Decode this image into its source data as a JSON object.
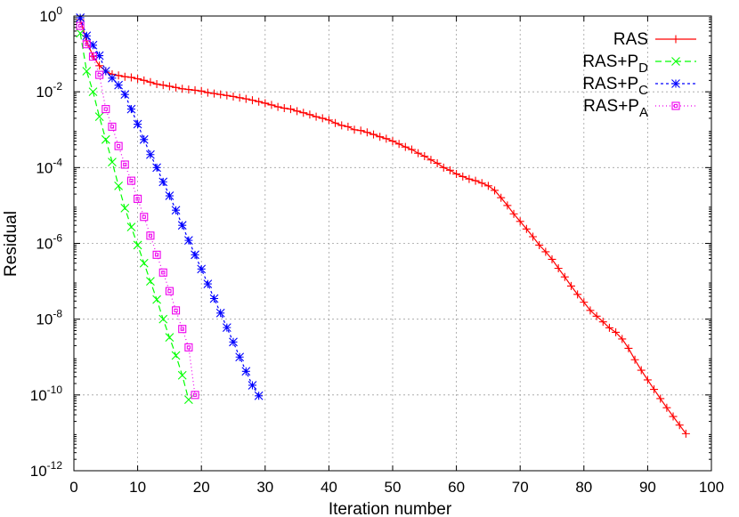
{
  "chart_data": {
    "type": "line",
    "xlabel": "Iteration number",
    "ylabel": "Residual",
    "xlim": [
      0,
      100
    ],
    "ylim": [
      1e-12,
      1
    ],
    "y_scale": "log",
    "grid": true,
    "legend_position": "top-right",
    "x_ticks": [
      "0",
      "10",
      "20",
      "30",
      "40",
      "50",
      "60",
      "70",
      "80",
      "90",
      "100"
    ],
    "y_ticks": [
      {
        "base": "10",
        "exp": "-12",
        "value": 1e-12
      },
      {
        "base": "10",
        "exp": "-10",
        "value": 1e-10
      },
      {
        "base": "10",
        "exp": "-8",
        "value": 1e-08
      },
      {
        "base": "10",
        "exp": "-6",
        "value": 1e-06
      },
      {
        "base": "10",
        "exp": "-4",
        "value": 0.0001
      },
      {
        "base": "10",
        "exp": "-2",
        "value": 0.01
      },
      {
        "base": "10",
        "exp": "0",
        "value": 1
      }
    ],
    "series": [
      {
        "name": "RAS",
        "legend_base": "RAS",
        "legend_sub": "",
        "color": "#ff0000",
        "dash": "",
        "marker": "plus",
        "x": [
          1,
          2,
          3,
          4,
          5,
          6,
          7,
          8,
          9,
          10,
          11,
          12,
          13,
          14,
          15,
          16,
          17,
          18,
          19,
          20,
          21,
          22,
          23,
          24,
          25,
          26,
          27,
          28,
          29,
          30,
          31,
          32,
          33,
          34,
          35,
          36,
          37,
          38,
          39,
          40,
          41,
          42,
          43,
          44,
          45,
          46,
          47,
          48,
          49,
          50,
          51,
          52,
          53,
          54,
          55,
          56,
          57,
          58,
          59,
          60,
          61,
          62,
          63,
          64,
          65,
          66,
          67,
          68,
          69,
          70,
          71,
          72,
          73,
          74,
          75,
          76,
          77,
          78,
          79,
          80,
          81,
          82,
          83,
          84,
          85,
          86,
          87,
          88,
          89,
          90,
          91,
          92,
          93,
          94,
          95,
          96
        ],
        "y": [
          0.8,
          0.22,
          0.087,
          0.049,
          0.035,
          0.029,
          0.027,
          0.025,
          0.024,
          0.022,
          0.02,
          0.018,
          0.016,
          0.015,
          0.014,
          0.013,
          0.012,
          0.0115,
          0.011,
          0.0105,
          0.0095,
          0.009,
          0.0085,
          0.008,
          0.0075,
          0.007,
          0.0065,
          0.006,
          0.0055,
          0.005,
          0.0045,
          0.004,
          0.0037,
          0.0035,
          0.0031,
          0.0028,
          0.0025,
          0.0022,
          0.002,
          0.0018,
          0.0015,
          0.0013,
          0.0012,
          0.001,
          0.00095,
          0.00085,
          0.00075,
          0.00065,
          0.00058,
          0.0005,
          0.00042,
          0.00035,
          0.0003,
          0.00024,
          0.0002,
          0.00016,
          0.00013,
          0.0001,
          8.5e-05,
          6.8e-05,
          5.8e-05,
          5e-05,
          4.5e-05,
          3.9e-05,
          3.3e-05,
          2.5e-05,
          1.6e-05,
          1e-05,
          6e-06,
          3.8e-06,
          2.4e-06,
          1.5e-06,
          9e-07,
          6e-07,
          3.8e-07,
          2.2e-07,
          1.3e-07,
          7.5e-08,
          4.5e-08,
          2.8e-08,
          1.7e-08,
          1.2e-08,
          8.5e-09,
          5.9e-09,
          4.5e-09,
          3e-09,
          1.7e-09,
          8.5e-10,
          4.5e-10,
          2.5e-10,
          1.4e-10,
          8e-11,
          4.6e-11,
          2.7e-11,
          1.6e-11,
          9.5e-12
        ]
      },
      {
        "name": "RAS+PD",
        "legend_base": "RAS+P",
        "legend_sub": "D",
        "color": "#00ff00",
        "dash": "7 4",
        "marker": "x",
        "x": [
          1,
          2,
          3,
          4,
          5,
          6,
          7,
          8,
          9,
          10,
          11,
          12,
          13,
          14,
          15,
          16,
          17,
          18
        ],
        "y": [
          0.35,
          0.035,
          0.01,
          0.0022,
          0.00055,
          0.00014,
          3.3e-05,
          8.5e-06,
          2.7e-06,
          9e-07,
          3e-07,
          1e-07,
          3.3e-08,
          1e-08,
          3.3e-09,
          1.1e-09,
          3.3e-10,
          7.5e-11
        ]
      },
      {
        "name": "RAS+PC",
        "legend_base": "RAS+P",
        "legend_sub": "C",
        "color": "#0000ff",
        "dash": "3 3",
        "marker": "star",
        "x": [
          1,
          2,
          3,
          4,
          5,
          6,
          7,
          8,
          9,
          10,
          11,
          12,
          13,
          14,
          15,
          16,
          17,
          18,
          19,
          20,
          21,
          22,
          23,
          24,
          25,
          26,
          27,
          28,
          29
        ],
        "y": [
          0.9,
          0.3,
          0.17,
          0.09,
          0.035,
          0.023,
          0.015,
          0.0085,
          0.0035,
          0.0014,
          0.00055,
          0.00022,
          0.0001,
          4.2e-05,
          1.8e-05,
          7.5e-06,
          3e-06,
          1.2e-06,
          5e-07,
          2.1e-07,
          8.5e-08,
          3.5e-08,
          1.45e-08,
          6e-09,
          2.5e-09,
          1e-09,
          4.2e-10,
          1.8e-10,
          9.5e-11
        ]
      },
      {
        "name": "RAS+PA",
        "legend_base": "RAS+P",
        "legend_sub": "A",
        "color": "#ee00ee",
        "dash": "1 3",
        "marker": "box",
        "x": [
          1,
          2,
          3,
          4,
          5,
          6,
          7,
          8,
          9,
          10,
          11,
          12,
          13,
          14,
          15,
          16,
          17,
          18,
          19
        ],
        "y": [
          0.55,
          0.18,
          0.085,
          0.028,
          0.0035,
          0.0012,
          0.00037,
          0.00012,
          4.5e-05,
          1.5e-05,
          5e-06,
          1.6e-06,
          5e-07,
          1.7e-07,
          5.5e-08,
          1.7e-08,
          5.5e-09,
          1.8e-09,
          1e-10
        ]
      }
    ]
  }
}
